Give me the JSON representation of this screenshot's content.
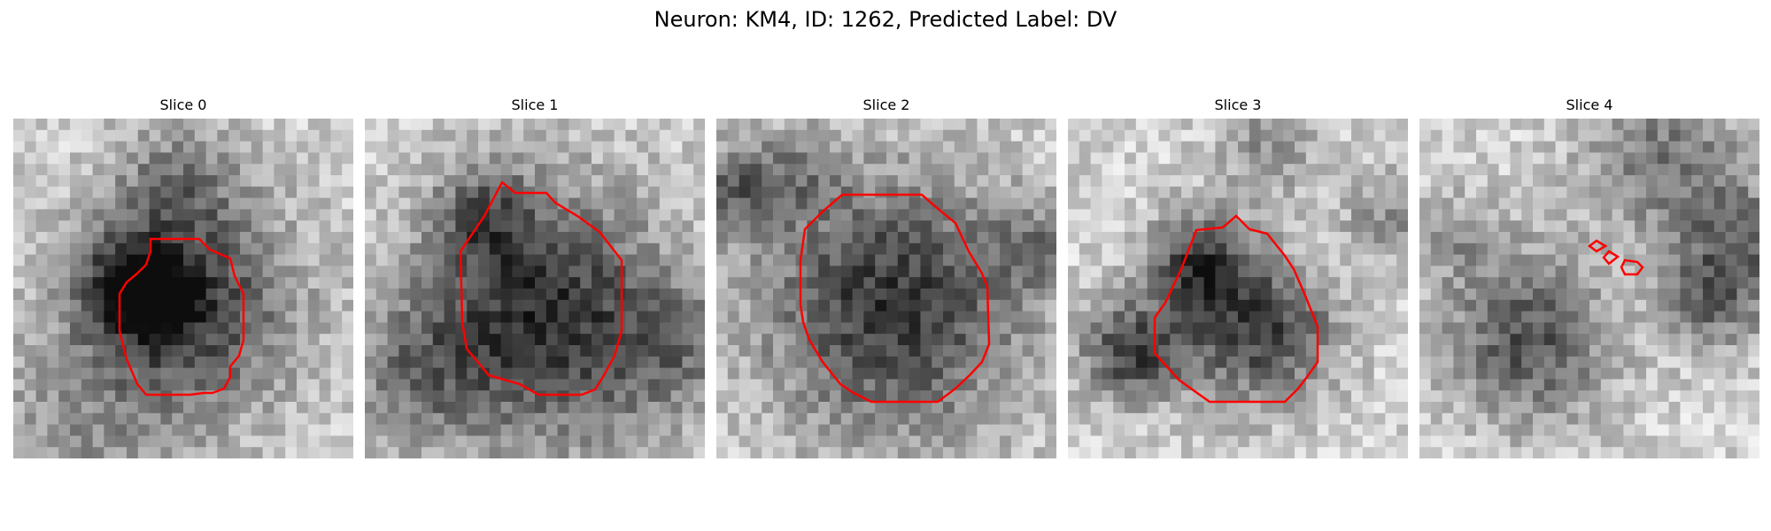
{
  "title": "Neuron: KM4, ID: 1262, Predicted Label: DV",
  "panels": [
    {
      "title": "Slice 0",
      "outline_color": "#ff0000"
    },
    {
      "title": "Slice 1",
      "outline_color": "#ff0000"
    },
    {
      "title": "Slice 2",
      "outline_color": "#ff0000"
    },
    {
      "title": "Slice 3",
      "outline_color": "#ff0000"
    },
    {
      "title": "Slice 4",
      "outline_color": "#ff0000"
    }
  ],
  "colors": {
    "outline": "#ff0000",
    "background": "#ffffff"
  }
}
